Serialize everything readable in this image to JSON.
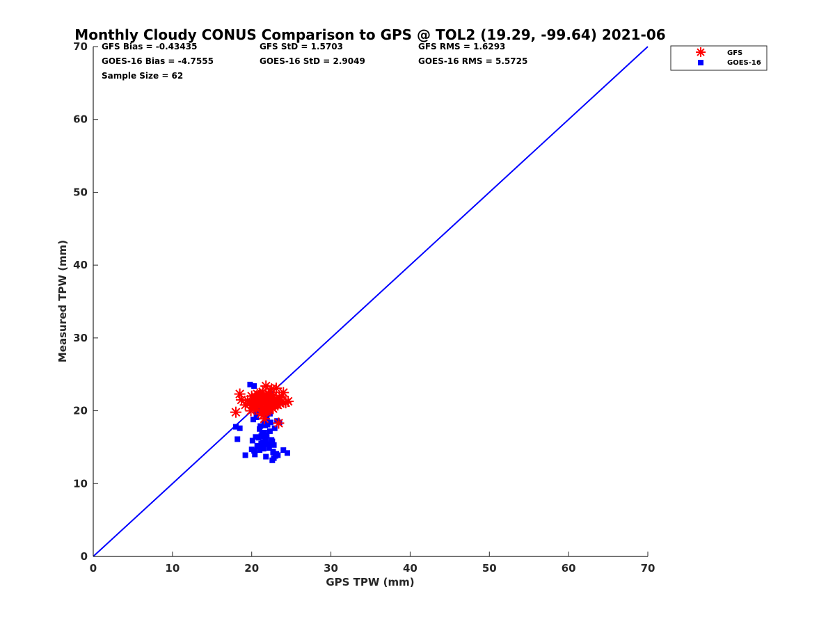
{
  "chart_data": {
    "type": "scatter",
    "title": "Monthly Cloudy CONUS Comparison to GPS @ TOL2 (19.29, -99.64) 2021-06",
    "xlabel": "GPS TPW (mm)",
    "ylabel": "Measured TPW (mm)",
    "xlim": [
      0,
      70
    ],
    "ylim": [
      0,
      70
    ],
    "xticks": [
      "0",
      "10",
      "20",
      "30",
      "40",
      "50",
      "60",
      "70"
    ],
    "yticks": [
      "0",
      "10",
      "20",
      "30",
      "40",
      "50",
      "60",
      "70"
    ],
    "grid": false,
    "legend_position": "top-right, outside plot",
    "reference_line": {
      "x": [
        0,
        70
      ],
      "y": [
        0,
        70
      ],
      "color": "#0000ff"
    },
    "stats": [
      "GFS Bias = -0.43435",
      "GOES-16 Bias = -4.7555",
      "Sample Size = 62",
      "GFS StD = 1.5703",
      "GOES-16 StD = 2.9049",
      "GFS RMS = 1.6293",
      "GOES-16 RMS = 5.5725"
    ],
    "series": [
      {
        "name": "GFS",
        "marker": "asterisk",
        "color": "#ff0000",
        "x": [
          18.0,
          18.5,
          18.7,
          19.2,
          19.5,
          19.8,
          20.0,
          20.2,
          20.4,
          20.5,
          20.6,
          20.8,
          21.0,
          21.1,
          21.2,
          21.3,
          21.4,
          21.5,
          21.6,
          21.7,
          21.8,
          21.9,
          22.0,
          22.0,
          22.1,
          22.2,
          22.3,
          22.4,
          22.5,
          22.6,
          22.7,
          22.8,
          22.9,
          23.0,
          23.1,
          23.2,
          23.4,
          23.6,
          23.8,
          24.0,
          24.3,
          24.6,
          20.3,
          20.9,
          21.5,
          22.2,
          21.2,
          20.7,
          21.8,
          22.5,
          23.3,
          21.0,
          20.1,
          22.9,
          21.4,
          21.9,
          22.6,
          19.9,
          20.5,
          23.5,
          21.7,
          22.3
        ],
        "y": [
          19.8,
          22.3,
          21.5,
          20.8,
          21.4,
          21.0,
          22.0,
          21.6,
          20.5,
          21.9,
          20.2,
          21.3,
          22.2,
          20.9,
          19.6,
          21.7,
          20.4,
          22.0,
          18.9,
          21.2,
          23.4,
          20.6,
          21.8,
          20.1,
          22.4,
          21.0,
          20.7,
          21.5,
          23.0,
          21.2,
          20.3,
          22.1,
          21.6,
          20.9,
          23.1,
          21.4,
          18.3,
          21.0,
          22.0,
          22.5,
          21.1,
          21.3,
          20.7,
          22.1,
          19.4,
          20.5,
          21.9,
          22.3,
          20.2,
          21.7,
          20.8,
          21.5,
          20.9,
          21.2,
          22.6,
          19.9,
          20.4,
          20.0,
          21.1,
          21.8,
          20.6,
          22.0
        ]
      },
      {
        "name": "GOES-16",
        "marker": "square",
        "color": "#0000ff",
        "x": [
          18.0,
          18.2,
          18.5,
          19.2,
          19.8,
          20.1,
          20.3,
          20.5,
          20.6,
          20.8,
          20.9,
          21.0,
          21.1,
          21.2,
          21.3,
          21.4,
          21.5,
          21.6,
          21.7,
          21.8,
          21.9,
          22.0,
          22.1,
          22.2,
          22.3,
          22.4,
          22.5,
          22.6,
          22.7,
          22.8,
          22.9,
          23.0,
          23.2,
          23.5,
          24.0,
          24.5,
          20.2,
          20.7,
          21.0,
          21.5,
          22.0,
          22.6,
          23.1,
          20.4,
          21.2,
          21.9,
          22.8,
          20.0,
          21.6,
          22.3,
          20.9,
          21.4,
          22.7,
          23.3,
          21.8,
          20.6,
          22.1,
          21.3,
          20.3,
          22.5,
          21.7,
          23.6
        ],
        "y": [
          17.8,
          16.1,
          17.6,
          13.9,
          23.6,
          15.9,
          23.4,
          16.4,
          19.1,
          15.1,
          20.5,
          14.6,
          17.9,
          16.5,
          20.0,
          15.7,
          14.8,
          18.3,
          16.2,
          13.7,
          19.0,
          15.4,
          22.0,
          14.9,
          17.2,
          18.4,
          16.0,
          13.2,
          14.4,
          15.3,
          17.6,
          13.8,
          18.6,
          18.4,
          14.6,
          14.2,
          18.8,
          15.2,
          17.5,
          16.8,
          18.1,
          15.8,
          14.1,
          14.0,
          15.5,
          16.6,
          13.5,
          14.7,
          17.0,
          19.6,
          16.3,
          15.0,
          14.3,
          13.9,
          15.9,
          19.8,
          21.7,
          16.9,
          14.5,
          15.6,
          18.0,
          21.2
        ]
      }
    ]
  }
}
